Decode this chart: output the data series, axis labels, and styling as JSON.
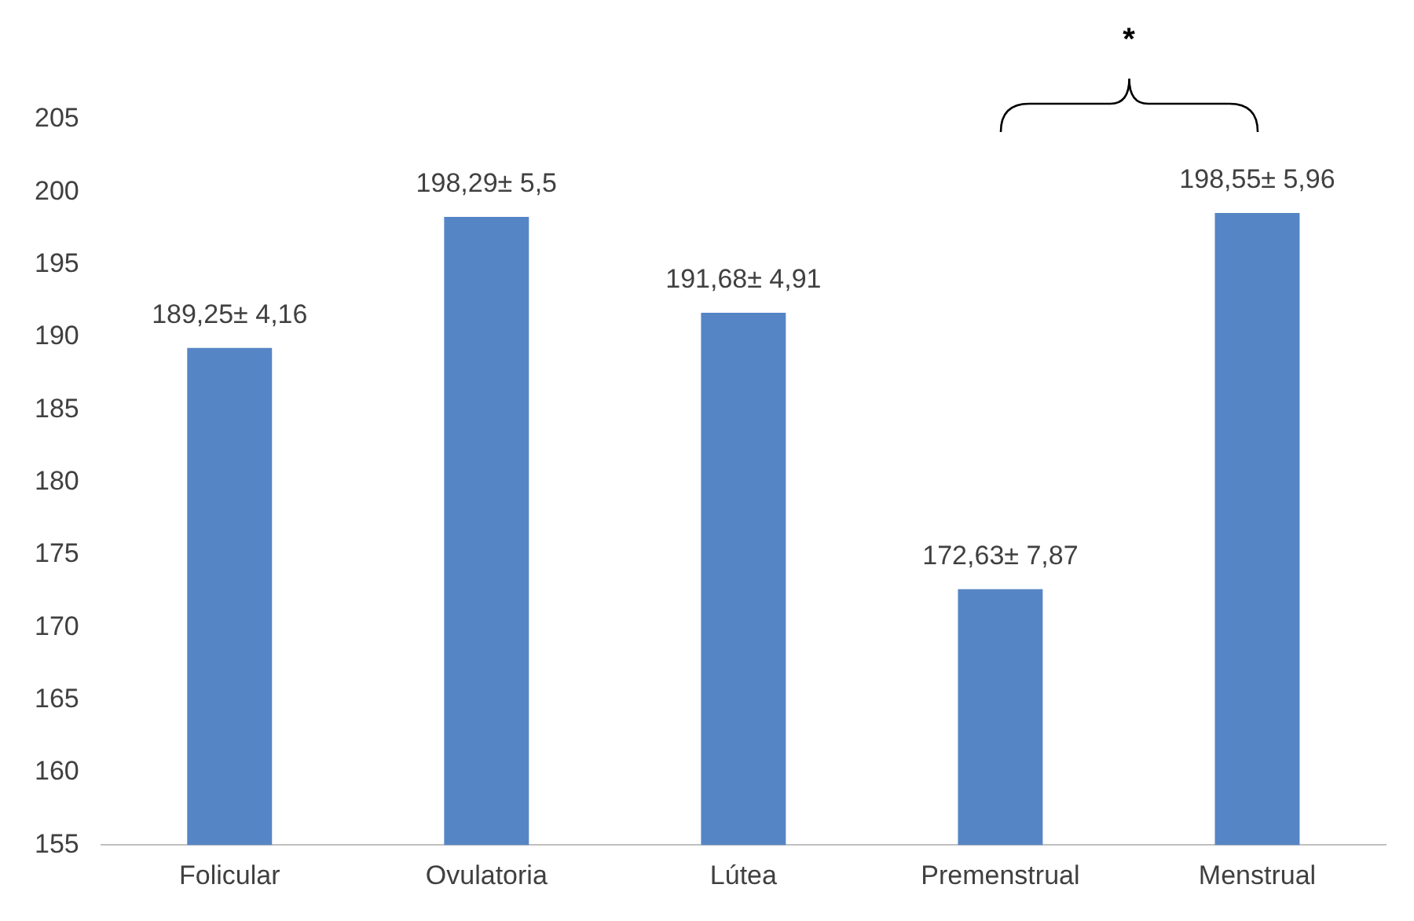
{
  "chart_data": {
    "type": "bar",
    "categories": [
      "Folicular",
      "Ovulatoria",
      "Lútea",
      "Premenstrual",
      "Menstrual"
    ],
    "values": [
      189.25,
      198.29,
      191.68,
      172.63,
      198.55
    ],
    "value_labels": [
      "189,25± 4,16",
      "198,29± 5,5",
      "191,68± 4,91",
      "172,63± 7,87",
      "198,55± 5,96"
    ],
    "color": "#5585c5",
    "ylim": [
      155,
      205
    ],
    "yticks": [
      155,
      160,
      165,
      170,
      175,
      180,
      185,
      190,
      195,
      200,
      205
    ],
    "grid": false,
    "legend": false,
    "annotations": [
      "*"
    ]
  }
}
